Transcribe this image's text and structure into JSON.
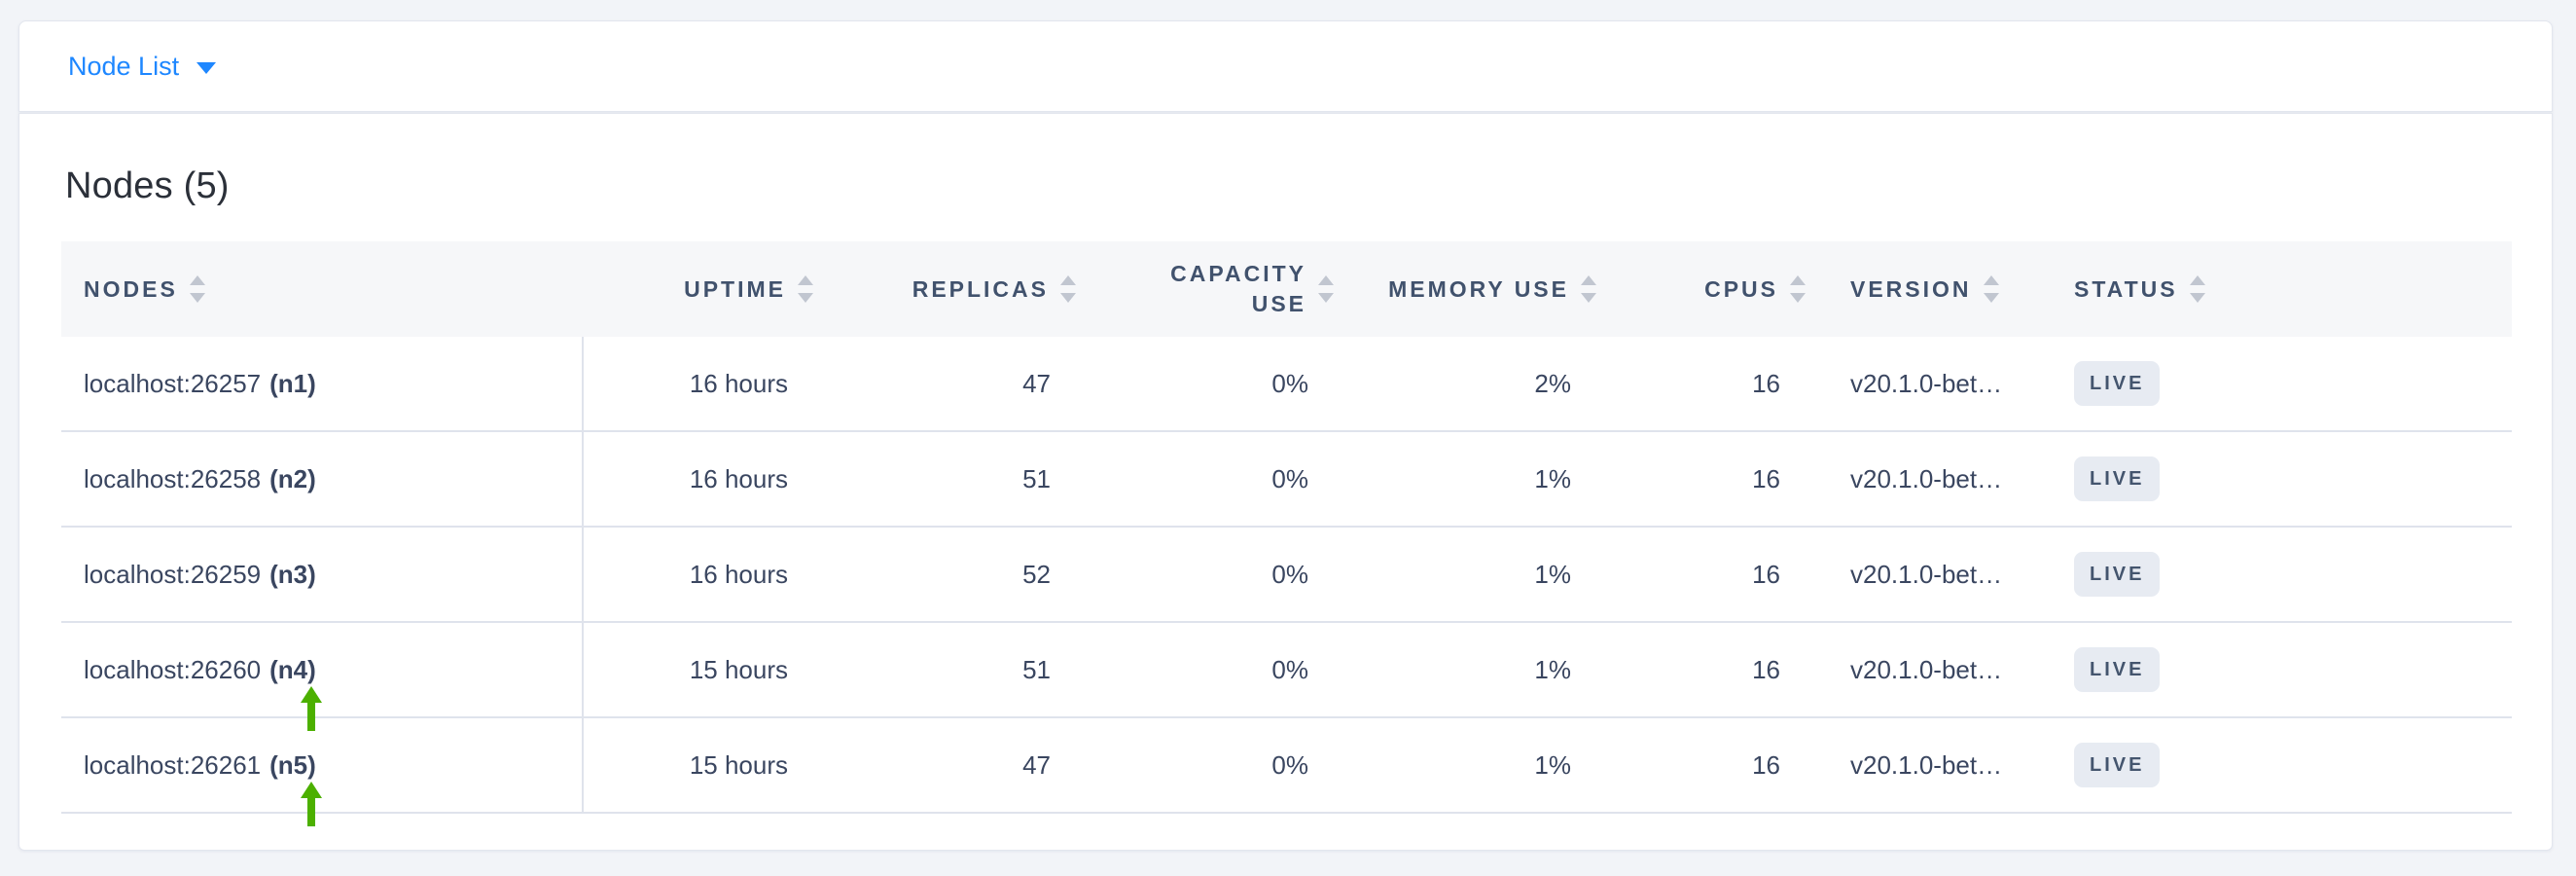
{
  "toolbar": {
    "dropdown_label": "Node List"
  },
  "panel": {
    "title": "Nodes (5)"
  },
  "table": {
    "columns": [
      {
        "label": "NODES"
      },
      {
        "label": "UPTIME"
      },
      {
        "label": "REPLICAS"
      },
      {
        "label": "CAPACITY USE"
      },
      {
        "label": "MEMORY USE"
      },
      {
        "label": "CPUS"
      },
      {
        "label": "VERSION"
      },
      {
        "label": "STATUS"
      }
    ],
    "rows": [
      {
        "address": "localhost:26257",
        "id": "(n1)",
        "uptime": "16 hours",
        "replicas": "47",
        "capacity_use": "0%",
        "memory_use": "2%",
        "cpus": "16",
        "version": "v20.1.0-bet…",
        "status": "LIVE",
        "highlight_arrow": false
      },
      {
        "address": "localhost:26258",
        "id": "(n2)",
        "uptime": "16 hours",
        "replicas": "51",
        "capacity_use": "0%",
        "memory_use": "1%",
        "cpus": "16",
        "version": "v20.1.0-bet…",
        "status": "LIVE",
        "highlight_arrow": false
      },
      {
        "address": "localhost:26259",
        "id": "(n3)",
        "uptime": "16 hours",
        "replicas": "52",
        "capacity_use": "0%",
        "memory_use": "1%",
        "cpus": "16",
        "version": "v20.1.0-bet…",
        "status": "LIVE",
        "highlight_arrow": false
      },
      {
        "address": "localhost:26260",
        "id": "(n4)",
        "uptime": "15 hours",
        "replicas": "51",
        "capacity_use": "0%",
        "memory_use": "1%",
        "cpus": "16",
        "version": "v20.1.0-bet…",
        "status": "LIVE",
        "highlight_arrow": true
      },
      {
        "address": "localhost:26261",
        "id": "(n5)",
        "uptime": "15 hours",
        "replicas": "47",
        "capacity_use": "0%",
        "memory_use": "1%",
        "cpus": "16",
        "version": "v20.1.0-bet…",
        "status": "LIVE",
        "highlight_arrow": true
      }
    ]
  },
  "colors": {
    "accent_blue": "#1e87ff",
    "arrow_green": "#4cb000",
    "badge_bg": "#e7ebf2",
    "badge_text": "#44556e",
    "header_text": "#41526d",
    "cell_text": "#3a4660",
    "page_bg": "#f2f4f8",
    "divider": "#dfe3ec"
  }
}
